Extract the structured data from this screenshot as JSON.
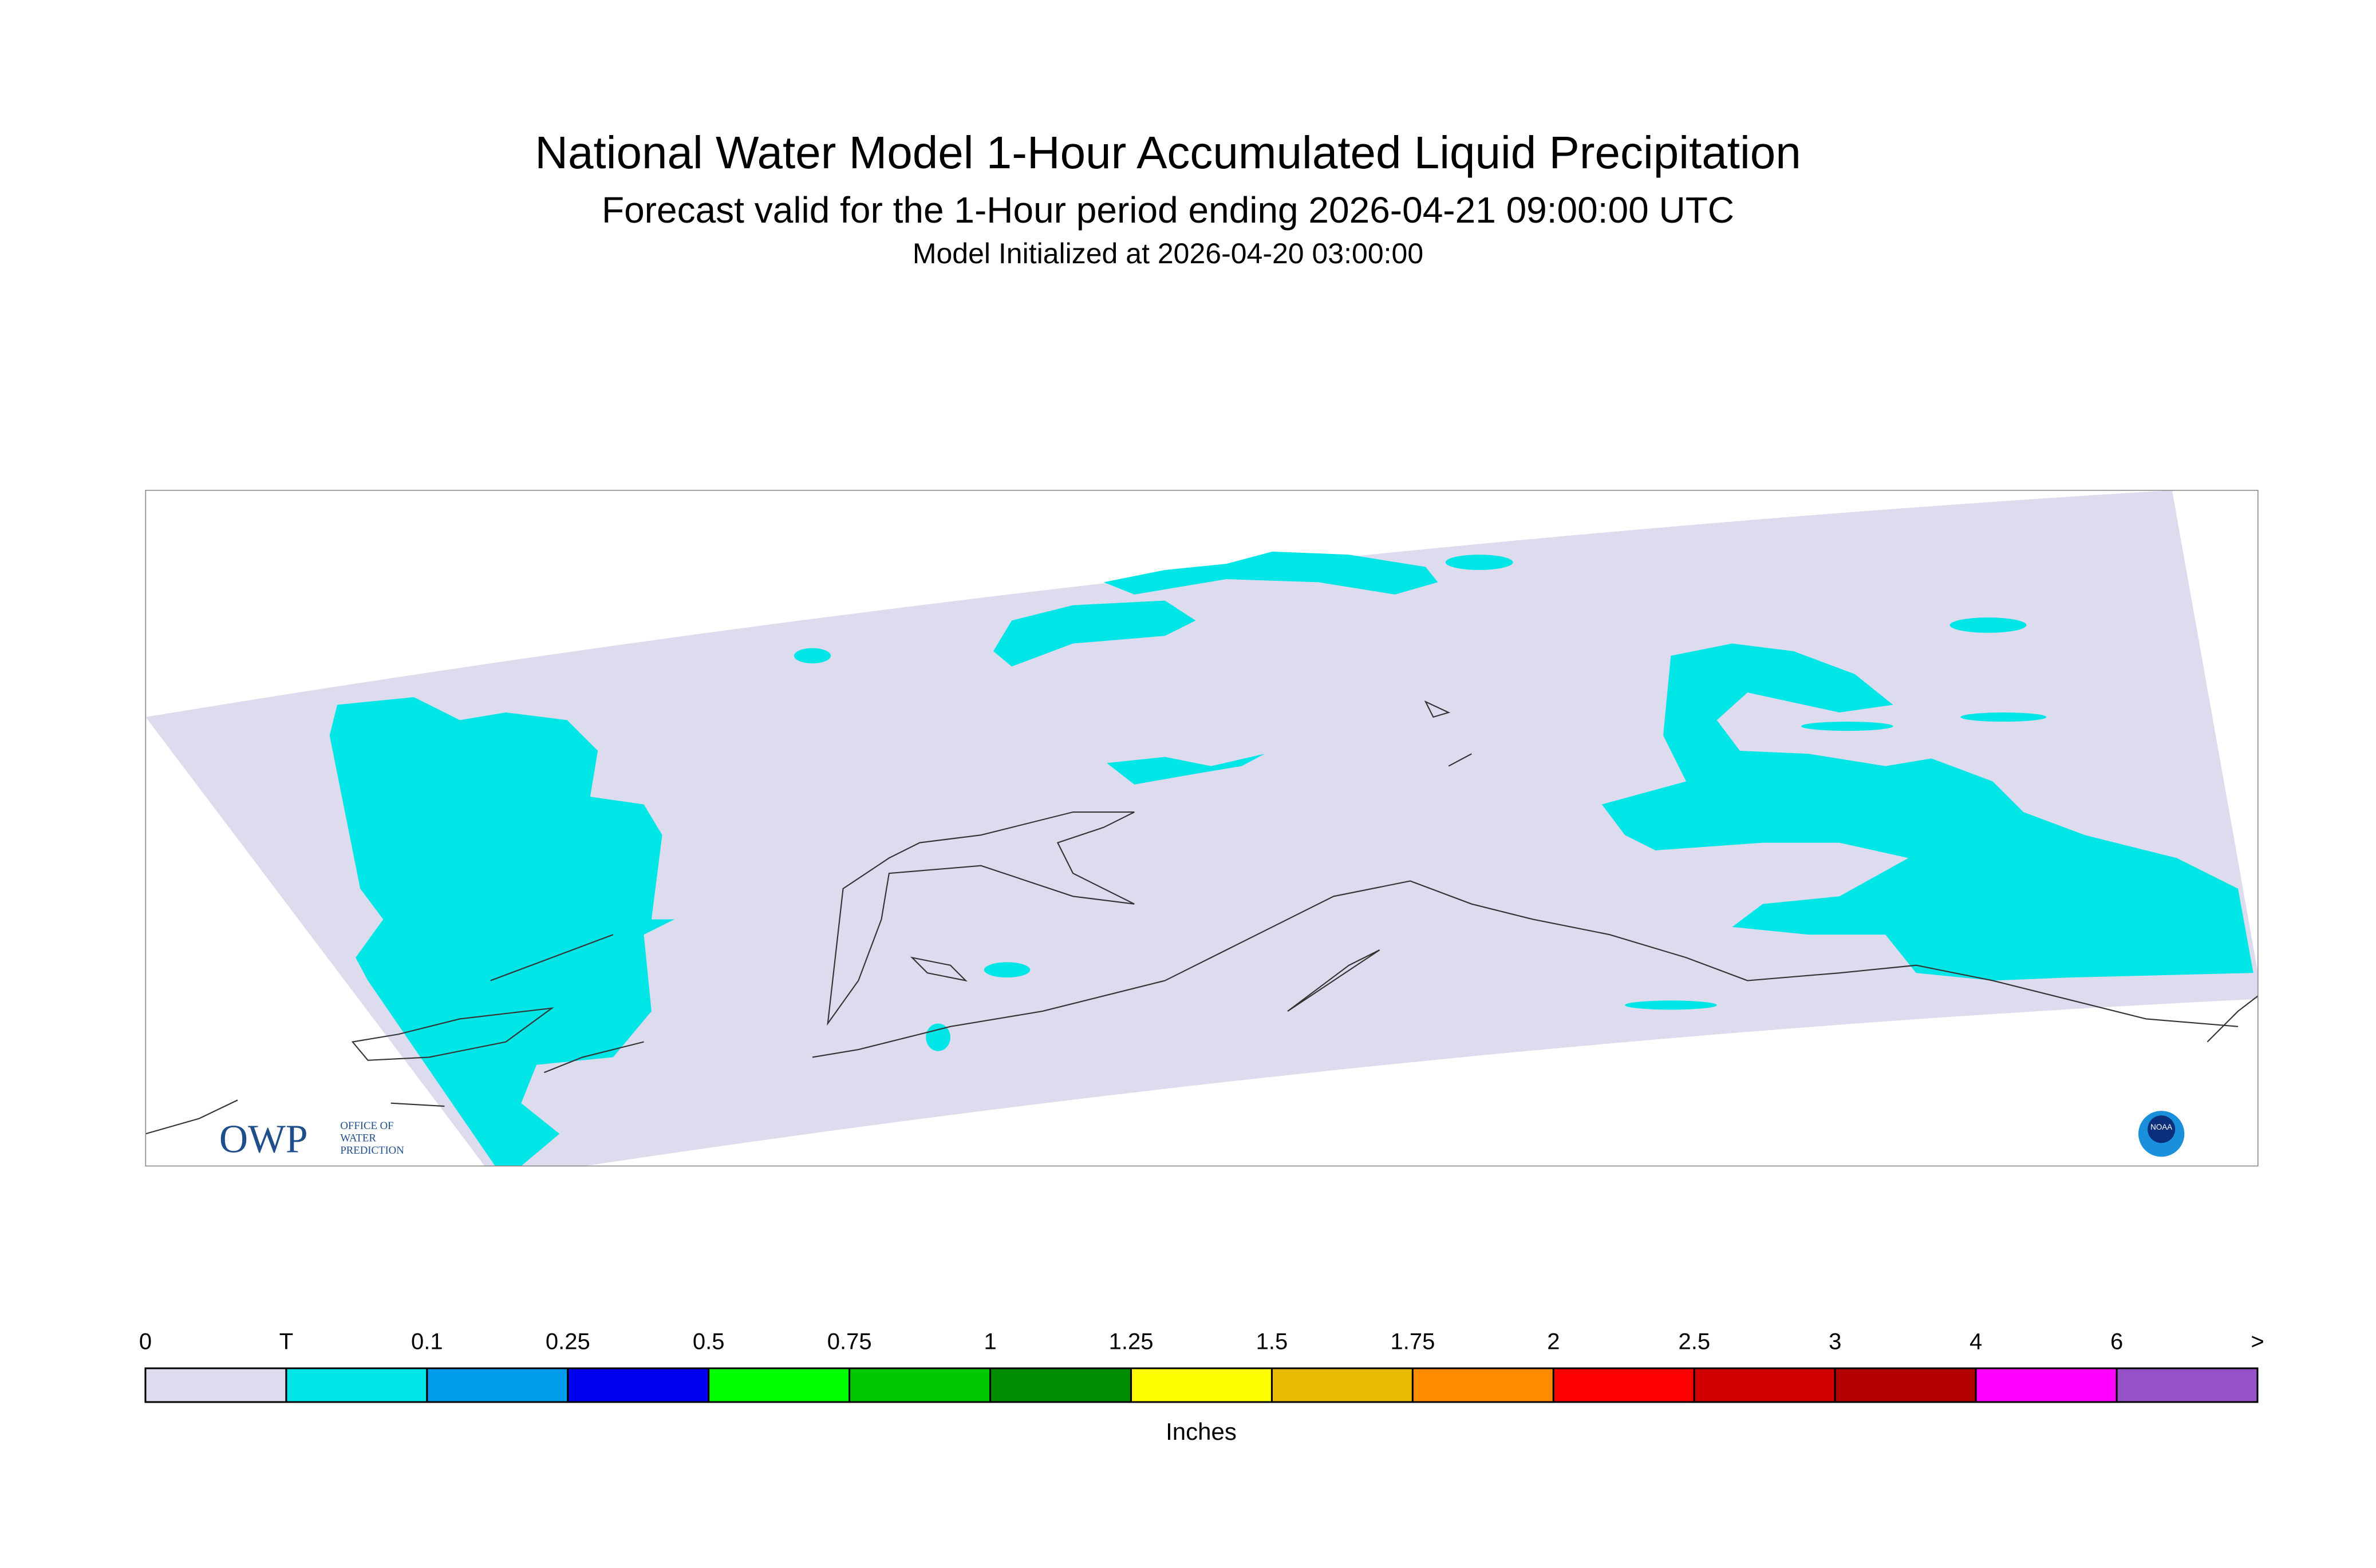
{
  "header": {
    "title": "National Water Model 1-Hour Accumulated Liquid Precipitation",
    "subtitle": "Forecast valid for the 1-Hour period ending 2026-04-21 09:00:00 UTC",
    "init": "Model Initialized at 2026-04-20 03:00:00"
  },
  "logos": {
    "owp": "OWP",
    "owp_lines": [
      "OFFICE OF",
      "WATER",
      "PREDICTION"
    ],
    "noaa": "NOAA"
  },
  "legend": {
    "labels": [
      "0",
      "T",
      "0.1",
      "0.25",
      "0.5",
      "0.75",
      "1",
      "1.25",
      "1.5",
      "1.75",
      "2",
      "2.5",
      "3",
      "4",
      "6",
      ">"
    ],
    "colors": [
      "#dcdcee",
      "#00e5e5",
      "#009ceb",
      "#0000ee",
      "#00ff00",
      "#00c800",
      "#008c00",
      "#ffff00",
      "#e6bb00",
      "#ff8c00",
      "#ff0000",
      "#d10000",
      "#b30000",
      "#ff00ff",
      "#9650c8"
    ],
    "unit": "Inches"
  }
}
